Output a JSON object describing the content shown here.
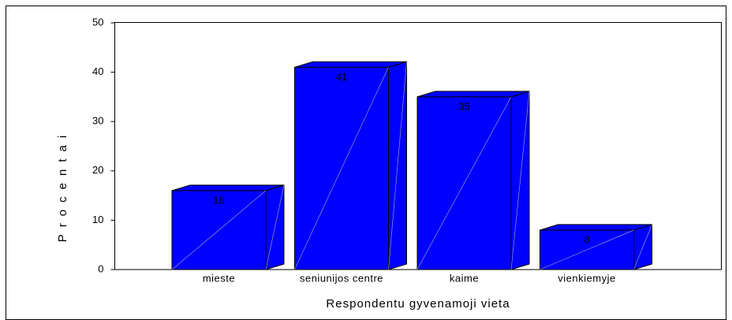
{
  "chart_data": {
    "type": "bar3d",
    "x_label": "Respondentu gyvenamoji vieta",
    "y_label": "Procentai",
    "categories": [
      "mieste",
      "seniunijos centre",
      "kaime",
      "vienkiemyje"
    ],
    "values": [
      16,
      41,
      35,
      8
    ],
    "color": "#0000ff",
    "ylim": [
      0,
      50
    ],
    "yticks": [
      0,
      10,
      20,
      30,
      40,
      50
    ]
  }
}
